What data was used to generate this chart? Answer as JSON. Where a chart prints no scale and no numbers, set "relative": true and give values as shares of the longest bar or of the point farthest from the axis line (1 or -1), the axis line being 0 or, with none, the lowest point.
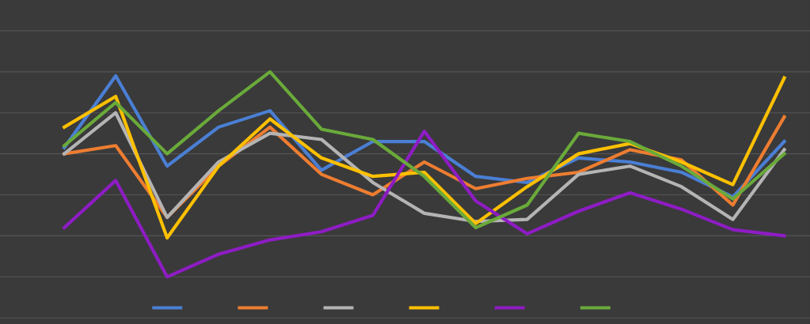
{
  "chart_data": {
    "type": "line",
    "relative": true,
    "categories": [
      null,
      null,
      null,
      null,
      null,
      null,
      null,
      null,
      null,
      null,
      null,
      null,
      null,
      null,
      null
    ],
    "series": [
      {
        "color": "#4a7fd4",
        "values": [
          0.63,
          0.98,
          0.54,
          0.73,
          0.81,
          0.52,
          0.66,
          0.66,
          0.49,
          0.46,
          0.58,
          0.56,
          0.51,
          0.39,
          0.66
        ]
      },
      {
        "color": "#ed7d31",
        "values": [
          0.6,
          0.64,
          0.29,
          0.54,
          0.73,
          0.5,
          0.4,
          0.56,
          0.43,
          0.48,
          0.51,
          0.62,
          0.57,
          0.35,
          0.78
        ]
      },
      {
        "color": "#b4b4b4",
        "values": [
          0.6,
          0.8,
          0.29,
          0.56,
          0.7,
          0.67,
          0.46,
          0.31,
          0.27,
          0.28,
          0.5,
          0.54,
          0.44,
          0.28,
          0.62
        ]
      },
      {
        "color": "#ffc000",
        "values": [
          0.73,
          0.88,
          0.19,
          0.54,
          0.77,
          0.58,
          0.49,
          0.51,
          0.26,
          0.44,
          0.6,
          0.65,
          0.56,
          0.45,
          0.97
        ]
      },
      {
        "color": "#8e1cc4",
        "values": [
          0.24,
          0.47,
          0.0,
          0.11,
          0.18,
          0.22,
          0.3,
          0.71,
          0.37,
          0.21,
          0.32,
          0.41,
          0.33,
          0.23,
          0.2
        ]
      },
      {
        "color": "#6aaa3a",
        "values": [
          0.64,
          0.85,
          0.6,
          0.81,
          1.0,
          0.72,
          0.67,
          0.49,
          0.24,
          0.35,
          0.7,
          0.66,
          0.54,
          0.38,
          0.6
        ]
      }
    ],
    "grid": "y",
    "marker": "none",
    "line_style": "solid"
  }
}
